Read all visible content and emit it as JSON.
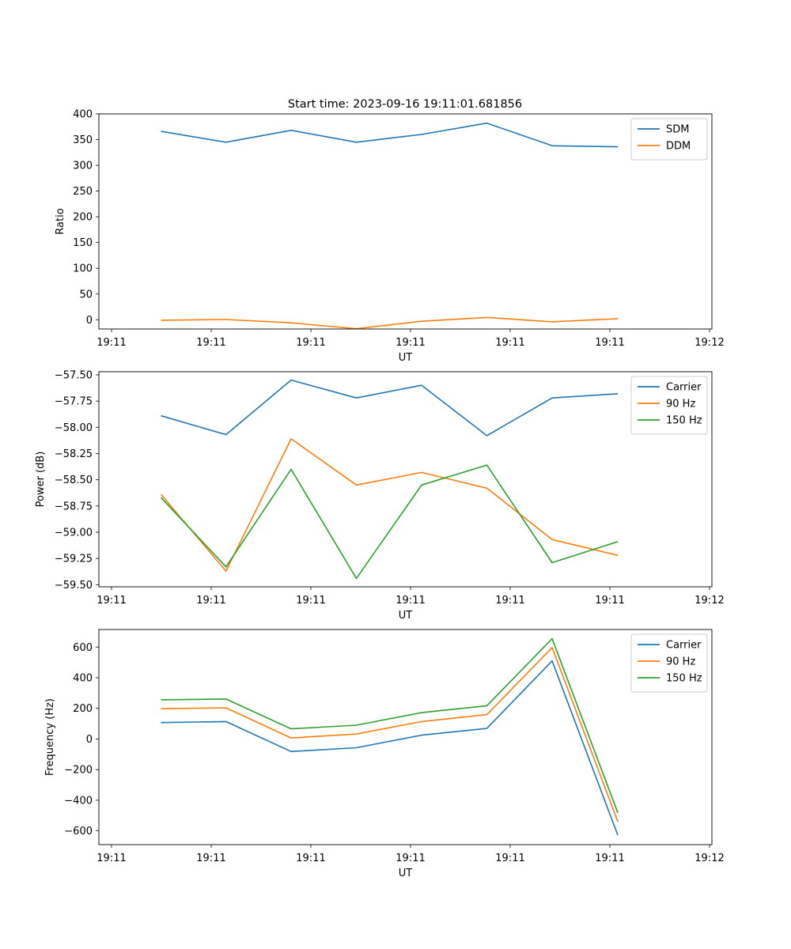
{
  "figure": {
    "title": "Start time: 2023-09-16 19:11:01.681856"
  },
  "chart_data": [
    {
      "type": "line",
      "title": "Start time: 2023-09-16 19:11:01.681856",
      "xlabel": "UT",
      "ylabel": "Ratio",
      "x_tick_labels": [
        "19:11",
        "19:11",
        "19:11",
        "19:11",
        "19:11",
        "19:11",
        "19:12"
      ],
      "yticks": [
        0,
        50,
        100,
        150,
        200,
        250,
        300,
        350,
        400
      ],
      "ylim": [
        -18,
        400
      ],
      "legend_position": "top-right",
      "series": [
        {
          "name": "SDM",
          "color": "#1f77b4",
          "values": [
            366,
            345,
            368,
            345,
            360,
            382,
            338,
            336
          ]
        },
        {
          "name": "DDM",
          "color": "#ff7f0e",
          "values": [
            -1,
            0.5,
            -6,
            -17.5,
            -3,
            4.5,
            -4,
            2
          ]
        }
      ]
    },
    {
      "type": "line",
      "title": "",
      "xlabel": "UT",
      "ylabel": "Power (dB)",
      "x_tick_labels": [
        "19:11",
        "19:11",
        "19:11",
        "19:11",
        "19:11",
        "19:11",
        "19:12"
      ],
      "yticks": [
        -59.5,
        -59.25,
        -59.0,
        -58.75,
        -58.5,
        -58.25,
        -58.0,
        -57.75,
        -57.5
      ],
      "ytick_labels": [
        "−59.50",
        "−59.25",
        "−59.00",
        "−58.75",
        "−58.50",
        "−58.25",
        "−58.00",
        "−57.75",
        "−57.50"
      ],
      "ylim": [
        -59.52,
        -57.47
      ],
      "legend_position": "top-right",
      "series": [
        {
          "name": "Carrier",
          "color": "#1f77b4",
          "values": [
            -57.89,
            -58.07,
            -57.55,
            -57.72,
            -57.6,
            -58.08,
            -57.72,
            -57.68
          ]
        },
        {
          "name": "90 Hz",
          "color": "#ff7f0e",
          "values": [
            -58.64,
            -59.37,
            -58.11,
            -58.55,
            -58.43,
            -58.58,
            -59.07,
            -59.22
          ]
        },
        {
          "name": "150 Hz",
          "color": "#2ca02c",
          "values": [
            -58.67,
            -59.33,
            -58.4,
            -59.44,
            -58.55,
            -58.36,
            -59.29,
            -59.09
          ]
        }
      ]
    },
    {
      "type": "line",
      "title": "",
      "xlabel": "UT",
      "ylabel": "Frequency (Hz)",
      "x_tick_labels": [
        "19:11",
        "19:11",
        "19:11",
        "19:11",
        "19:11",
        "19:11",
        "19:12"
      ],
      "yticks": [
        -600,
        -400,
        -200,
        0,
        200,
        400,
        600
      ],
      "ytick_labels": [
        "−600",
        "−400",
        "−200",
        "0",
        "200",
        "400",
        "600"
      ],
      "ylim": [
        -690,
        715
      ],
      "legend_position": "top-right",
      "series": [
        {
          "name": "Carrier",
          "color": "#1f77b4",
          "values": [
            107,
            114,
            -82,
            -57,
            25,
            69,
            510,
            -628
          ]
        },
        {
          "name": "90 Hz",
          "color": "#ff7f0e",
          "values": [
            198,
            203,
            7,
            32,
            114,
            159,
            597,
            -540
          ]
        },
        {
          "name": "150 Hz",
          "color": "#2ca02c",
          "values": [
            256,
            261,
            66,
            90,
            172,
            217,
            655,
            -482
          ]
        }
      ]
    }
  ]
}
